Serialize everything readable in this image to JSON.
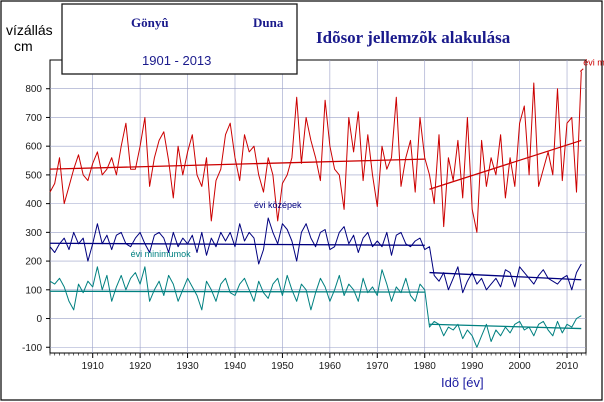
{
  "chart_data": {
    "type": "line",
    "title": "Idõsor jellemzõk alakulása",
    "station": "Gönyû",
    "river": "Duna",
    "period": "1901 - 2013",
    "ylabel_line1": "vízállás",
    "ylabel_line2": "cm",
    "xlabel": "Idõ [év]",
    "xlim": [
      1901,
      2014
    ],
    "ylim": [
      -120,
      900
    ],
    "xticks": [
      1910,
      1920,
      1930,
      1940,
      1950,
      1960,
      1970,
      1980,
      1990,
      2000,
      2010
    ],
    "yticks": [
      -100,
      0,
      100,
      200,
      300,
      400,
      500,
      600,
      700,
      800
    ],
    "grid": true,
    "x": [
      1901,
      1902,
      1903,
      1904,
      1905,
      1906,
      1907,
      1908,
      1909,
      1910,
      1911,
      1912,
      1913,
      1914,
      1915,
      1916,
      1917,
      1918,
      1919,
      1920,
      1921,
      1922,
      1923,
      1924,
      1925,
      1926,
      1927,
      1928,
      1929,
      1930,
      1931,
      1932,
      1933,
      1934,
      1935,
      1936,
      1937,
      1938,
      1939,
      1940,
      1941,
      1942,
      1943,
      1944,
      1945,
      1946,
      1947,
      1948,
      1949,
      1950,
      1951,
      1952,
      1953,
      1954,
      1955,
      1956,
      1957,
      1958,
      1959,
      1960,
      1961,
      1962,
      1963,
      1964,
      1965,
      1966,
      1967,
      1968,
      1969,
      1970,
      1971,
      1972,
      1973,
      1974,
      1975,
      1976,
      1977,
      1978,
      1979,
      1980,
      1981,
      1982,
      1983,
      1984,
      1985,
      1986,
      1987,
      1988,
      1989,
      1990,
      1991,
      1992,
      1993,
      1994,
      1995,
      1996,
      1997,
      1998,
      1999,
      2000,
      2001,
      2002,
      2003,
      2004,
      2005,
      2006,
      2007,
      2008,
      2009,
      2010,
      2011,
      2012,
      2013
    ],
    "series": [
      {
        "name": "évi maximumok",
        "color": "#cc0000",
        "values": [
          440,
          470,
          560,
          400,
          460,
          520,
          570,
          500,
          480,
          540,
          580,
          500,
          520,
          560,
          500,
          600,
          680,
          520,
          520,
          600,
          700,
          460,
          560,
          620,
          650,
          550,
          420,
          600,
          500,
          580,
          640,
          500,
          460,
          560,
          340,
          480,
          520,
          640,
          680,
          560,
          480,
          640,
          580,
          600,
          500,
          440,
          560,
          500,
          340,
          470,
          500,
          560,
          770,
          540,
          700,
          620,
          560,
          480,
          760,
          600,
          520,
          500,
          380,
          700,
          580,
          720,
          480,
          640,
          500,
          390,
          600,
          520,
          560,
          770,
          460,
          560,
          620,
          440,
          700,
          560,
          500,
          400,
          640,
          320,
          560,
          480,
          620,
          420,
          700,
          380,
          300,
          620,
          460,
          560,
          500,
          640,
          420,
          560,
          460,
          680,
          740,
          500,
          820,
          460,
          520,
          580,
          500,
          800,
          480,
          680,
          700,
          440,
          860
        ],
        "trend_segments": [
          {
            "x": [
              1901,
              1980
            ],
            "y": [
              520,
              555
            ]
          },
          {
            "x": [
              1981,
              2013
            ],
            "y": [
              450,
              620
            ]
          }
        ],
        "label_x": 2013,
        "label_y": 880
      },
      {
        "name": "évi középek",
        "color": "#00007f",
        "values": [
          250,
          230,
          260,
          280,
          240,
          300,
          260,
          280,
          200,
          260,
          330,
          260,
          290,
          240,
          290,
          300,
          260,
          250,
          280,
          300,
          260,
          230,
          290,
          300,
          280,
          230,
          300,
          250,
          280,
          260,
          290,
          230,
          300,
          220,
          280,
          250,
          300,
          270,
          300,
          250,
          330,
          270,
          300,
          280,
          190,
          240,
          350,
          300,
          260,
          330,
          310,
          270,
          200,
          300,
          330,
          280,
          250,
          300,
          310,
          240,
          250,
          300,
          320,
          260,
          290,
          230,
          280,
          300,
          250,
          270,
          250,
          300,
          220,
          290,
          300,
          260,
          250,
          270,
          280,
          240,
          250,
          150,
          130,
          160,
          100,
          140,
          180,
          90,
          130,
          160,
          120,
          140,
          100,
          120,
          140,
          110,
          170,
          160,
          110,
          180,
          160,
          140,
          120,
          150,
          170,
          140,
          130,
          120,
          140,
          150,
          100,
          160,
          190
        ],
        "trend_segments": [
          {
            "x": [
              1901,
              1980
            ],
            "y": [
              262,
              255
            ]
          },
          {
            "x": [
              1981,
              2013
            ],
            "y": [
              160,
              135
            ]
          }
        ],
        "label_x": 1944,
        "label_y": 385
      },
      {
        "name": "évi minimumok",
        "color": "#008080",
        "values": [
          130,
          120,
          140,
          110,
          60,
          30,
          120,
          90,
          130,
          110,
          180,
          100,
          150,
          60,
          110,
          150,
          100,
          140,
          160,
          120,
          180,
          60,
          100,
          130,
          80,
          150,
          120,
          60,
          100,
          140,
          110,
          80,
          30,
          130,
          100,
          60,
          120,
          140,
          90,
          80,
          120,
          140,
          100,
          60,
          130,
          90,
          70,
          120,
          140,
          80,
          150,
          100,
          60,
          120,
          100,
          30,
          90,
          140,
          110,
          60,
          100,
          150,
          80,
          120,
          100,
          60,
          140,
          90,
          110,
          80,
          170,
          120,
          60,
          110,
          90,
          140,
          80,
          60,
          120,
          100,
          -30,
          -10,
          -20,
          -60,
          -30,
          -40,
          -20,
          -70,
          -40,
          -60,
          -100,
          -60,
          -20,
          -80,
          -40,
          -60,
          -30,
          -50,
          -20,
          -10,
          -40,
          -30,
          -60,
          -20,
          -10,
          -40,
          -60,
          -10,
          -50,
          -20,
          -30,
          0,
          10
        ],
        "trend_segments": [
          {
            "x": [
              1901,
              1980
            ],
            "y": [
              95,
              92
            ]
          },
          {
            "x": [
              1981,
              2013
            ],
            "y": [
              -20,
              -35
            ]
          }
        ],
        "label_x": 1918,
        "label_y": 215
      }
    ]
  }
}
